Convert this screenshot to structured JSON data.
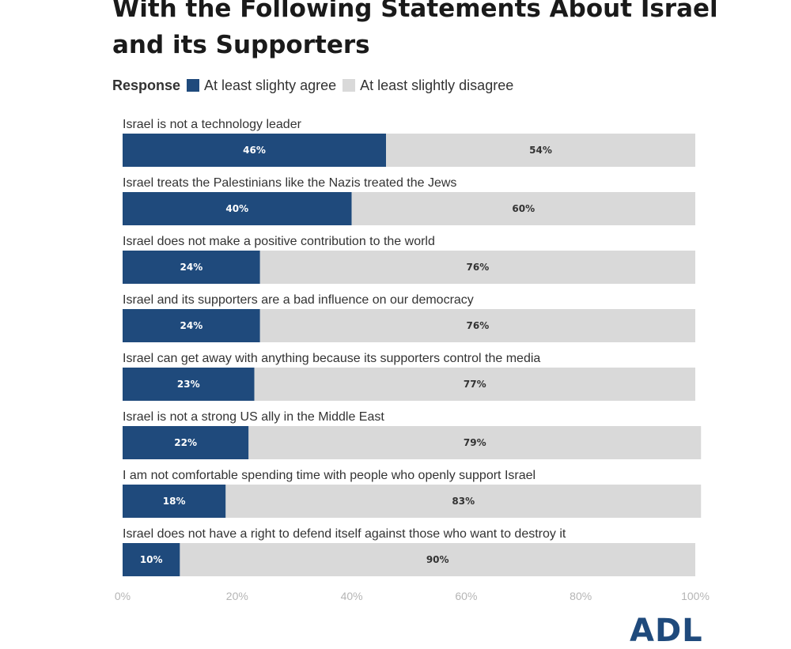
{
  "chart_data": {
    "type": "bar",
    "orientation": "horizontal",
    "stacked": true,
    "title": "With the Following Statements About Israel and its Supporters",
    "legend_title": "Response",
    "legend_placement": "top-left",
    "categories": [
      "Israel is not a technology leader",
      "Israel treats the Palestinians like the Nazis treated the Jews",
      "Israel does not make a positive contribution to the world",
      "Israel and its supporters are a bad influence on our democracy",
      "Israel can get away with anything because its supporters control the media",
      "Israel is not a strong US ally in the Middle East",
      "I am not comfortable spending time with people who openly support Israel",
      "Israel does not have a right to defend itself against those who want to destroy it"
    ],
    "series": [
      {
        "name": "At least slighty agree",
        "color": "#1f4a7c",
        "values": [
          46,
          40,
          24,
          24,
          23,
          22,
          18,
          10
        ],
        "labels": [
          "46%",
          "40%",
          "24%",
          "24%",
          "23%",
          "22%",
          "18%",
          "10%"
        ]
      },
      {
        "name": "At least slightly disagree",
        "color": "#d9d9d9",
        "values": [
          54,
          60,
          76,
          76,
          77,
          79,
          83,
          90
        ],
        "labels": [
          "54%",
          "60%",
          "76%",
          "76%",
          "77%",
          "79%",
          "83%",
          "90%"
        ]
      }
    ],
    "xlim": [
      0,
      100
    ],
    "xticks": [
      0,
      20,
      40,
      60,
      80,
      100
    ],
    "xtick_labels": [
      "0%",
      "20%",
      "40%",
      "60%",
      "80%",
      "100%"
    ],
    "grid": false
  },
  "logo_text": "ADL"
}
